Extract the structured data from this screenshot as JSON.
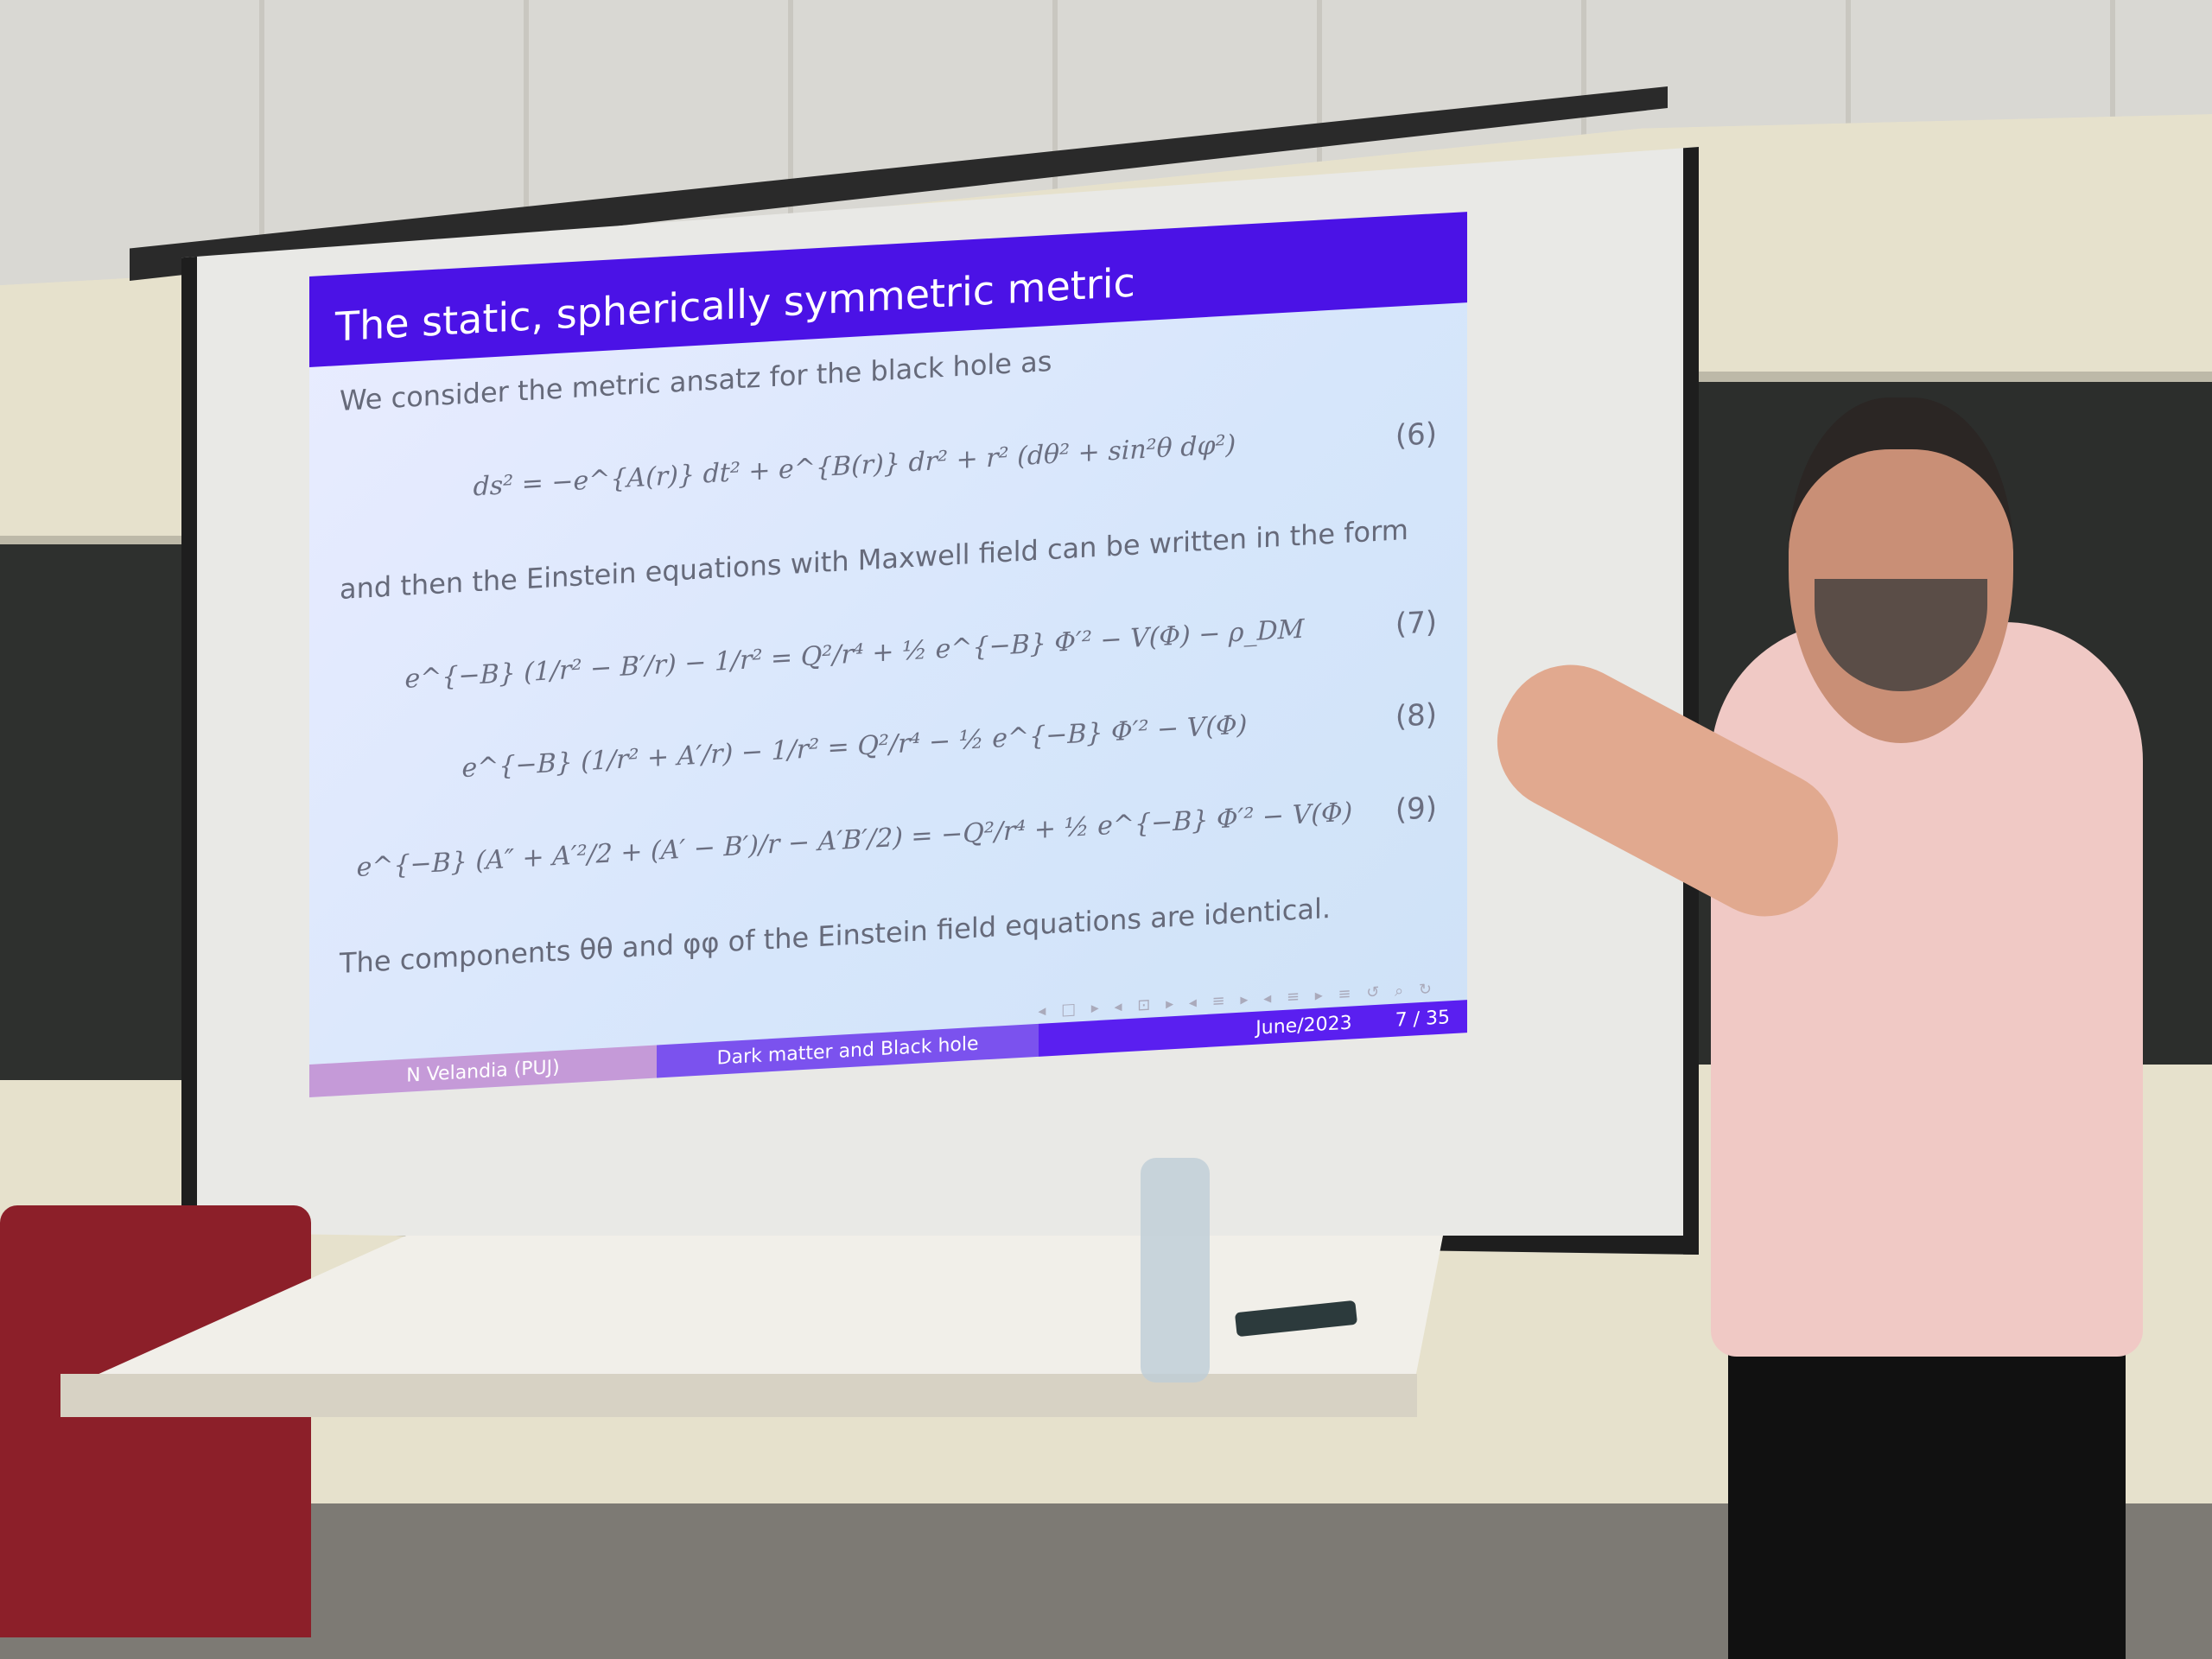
{
  "slide": {
    "title": "The static, spherically symmetric metric",
    "intro": "We consider the metric ansatz for the black hole as",
    "eq6": "ds² = −e^{A(r)} dt² + e^{B(r)} dr² + r² (dθ² + sin²θ dφ²)",
    "eq6_num": "(6)",
    "middle": "and then the Einstein equations with Maxwell field can be written in the form",
    "eq7": "e^{−B} (1/r² − B′/r) − 1/r² = Q²/r⁴ + ½ e^{−B} Φ′² − V(Φ) − ρ_DM",
    "eq7_num": "(7)",
    "eq8": "e^{−B} (1/r² + A′/r) − 1/r² = Q²/r⁴ − ½ e^{−B} Φ′² − V(Φ)",
    "eq8_num": "(8)",
    "eq9": "e^{−B} (A″ + A′²/2 + (A′ − B′)/r − A′B′/2) = −Q²/r⁴ + ½ e^{−B} Φ′² − V(Φ)",
    "eq9_num": "(9)",
    "closing": "The components θθ and φφ of the Einstein field equations are identical.",
    "nav_symbols": "◂ □ ▸ ◂ ⊡ ▸ ◂ ≡ ▸ ◂ ≡ ▸ ≡ ↺ ⌕ ↻",
    "footer": {
      "author": "N Velandia (PUJ)",
      "talk": "Dark matter and Black hole",
      "date": "June/2023",
      "page": "7 / 35"
    },
    "colors": {
      "title_bar": "#4b12e6",
      "footer_left": "#c59ad8",
      "footer_mid": "#7b52ee",
      "footer_right": "#5a1ff0"
    }
  }
}
